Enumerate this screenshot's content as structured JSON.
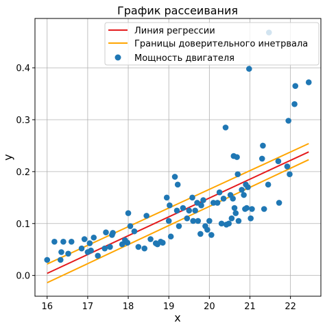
{
  "chart_data": {
    "type": "scatter",
    "title": "График рассеивания",
    "xlabel": "x",
    "ylabel": "y",
    "xlim": [
      15.7,
      22.75
    ],
    "ylim": [
      -0.04,
      0.495
    ],
    "x_ticks": [
      16,
      17,
      18,
      19,
      20,
      21,
      22
    ],
    "x_tick_labels": [
      "16",
      "17",
      "18",
      "19",
      "20",
      "21",
      "22"
    ],
    "y_ticks": [
      0.0,
      0.1,
      0.2,
      0.3,
      0.4
    ],
    "y_tick_labels": [
      "0.0",
      "0.1",
      "0.2",
      "0.3",
      "0.4"
    ],
    "grid": true,
    "legend_position": "top-right",
    "colors": {
      "regression": "#e41a1c",
      "confidence": "#ffa500",
      "points": "#1f77b4",
      "grid": "#b0b0b0"
    },
    "series": [
      {
        "name": "Линия регрессии",
        "kind": "line",
        "x": [
          16.0,
          22.45
        ],
        "y": [
          0.004,
          0.238
        ]
      },
      {
        "name": "Границы доверительного инетрвала",
        "kind": "band",
        "x": [
          16.0,
          22.45
        ],
        "upper": [
          0.022,
          0.254
        ],
        "lower": [
          -0.014,
          0.223
        ]
      },
      {
        "name": "Мощность двигателя",
        "kind": "scatter",
        "points": [
          [
            16.0,
            0.03
          ],
          [
            16.18,
            0.065
          ],
          [
            16.33,
            0.03
          ],
          [
            16.35,
            0.045
          ],
          [
            16.4,
            0.065
          ],
          [
            16.52,
            0.042
          ],
          [
            16.6,
            0.065
          ],
          [
            16.85,
            0.052
          ],
          [
            16.92,
            0.07
          ],
          [
            17.0,
            0.045
          ],
          [
            17.05,
            0.062
          ],
          [
            17.08,
            0.048
          ],
          [
            17.15,
            0.073
          ],
          [
            17.25,
            0.038
          ],
          [
            17.42,
            0.052
          ],
          [
            17.45,
            0.083
          ],
          [
            17.55,
            0.055
          ],
          [
            17.6,
            0.078
          ],
          [
            17.62,
            0.082
          ],
          [
            17.85,
            0.06
          ],
          [
            17.92,
            0.068
          ],
          [
            17.98,
            0.063
          ],
          [
            18.0,
            0.12
          ],
          [
            18.05,
            0.095
          ],
          [
            18.15,
            0.085
          ],
          [
            18.25,
            0.055
          ],
          [
            18.4,
            0.052
          ],
          [
            18.45,
            0.115
          ],
          [
            18.55,
            0.07
          ],
          [
            18.68,
            0.062
          ],
          [
            18.72,
            0.06
          ],
          [
            18.8,
            0.065
          ],
          [
            18.85,
            0.063
          ],
          [
            18.95,
            0.15
          ],
          [
            19.0,
            0.105
          ],
          [
            19.02,
            0.135
          ],
          [
            19.05,
            0.075
          ],
          [
            19.15,
            0.19
          ],
          [
            19.2,
            0.125
          ],
          [
            19.22,
            0.175
          ],
          [
            19.25,
            0.095
          ],
          [
            19.35,
            0.13
          ],
          [
            19.45,
            0.11
          ],
          [
            19.5,
            0.125
          ],
          [
            19.58,
            0.15
          ],
          [
            19.6,
            0.105
          ],
          [
            19.65,
            0.125
          ],
          [
            19.7,
            0.14
          ],
          [
            19.72,
            0.105
          ],
          [
            19.78,
            0.08
          ],
          [
            19.8,
            0.135
          ],
          [
            19.85,
            0.145
          ],
          [
            19.9,
            0.095
          ],
          [
            19.95,
            0.088
          ],
          [
            20.0,
            0.105
          ],
          [
            20.05,
            0.078
          ],
          [
            20.1,
            0.14
          ],
          [
            20.2,
            0.14
          ],
          [
            20.25,
            0.16
          ],
          [
            20.3,
            0.1
          ],
          [
            20.35,
            0.148
          ],
          [
            20.4,
            0.285
          ],
          [
            20.42,
            0.098
          ],
          [
            20.48,
            0.1
          ],
          [
            20.52,
            0.155
          ],
          [
            20.55,
            0.11
          ],
          [
            20.58,
            0.148
          ],
          [
            20.6,
            0.23
          ],
          [
            20.62,
            0.13
          ],
          [
            20.65,
            0.12
          ],
          [
            20.68,
            0.228
          ],
          [
            20.7,
            0.195
          ],
          [
            20.72,
            0.105
          ],
          [
            20.8,
            0.165
          ],
          [
            20.85,
            0.155
          ],
          [
            20.88,
            0.128
          ],
          [
            20.9,
            0.175
          ],
          [
            20.92,
            0.13
          ],
          [
            20.95,
            0.17
          ],
          [
            20.98,
            0.398
          ],
          [
            21.02,
            0.11
          ],
          [
            21.05,
            0.128
          ],
          [
            21.3,
            0.225
          ],
          [
            21.32,
            0.25
          ],
          [
            21.35,
            0.128
          ],
          [
            21.45,
            0.175
          ],
          [
            21.47,
            0.468
          ],
          [
            21.7,
            0.22
          ],
          [
            21.72,
            0.14
          ],
          [
            21.92,
            0.21
          ],
          [
            21.95,
            0.298
          ],
          [
            21.98,
            0.195
          ],
          [
            22.1,
            0.33
          ],
          [
            22.12,
            0.365
          ],
          [
            22.45,
            0.372
          ]
        ]
      }
    ]
  }
}
